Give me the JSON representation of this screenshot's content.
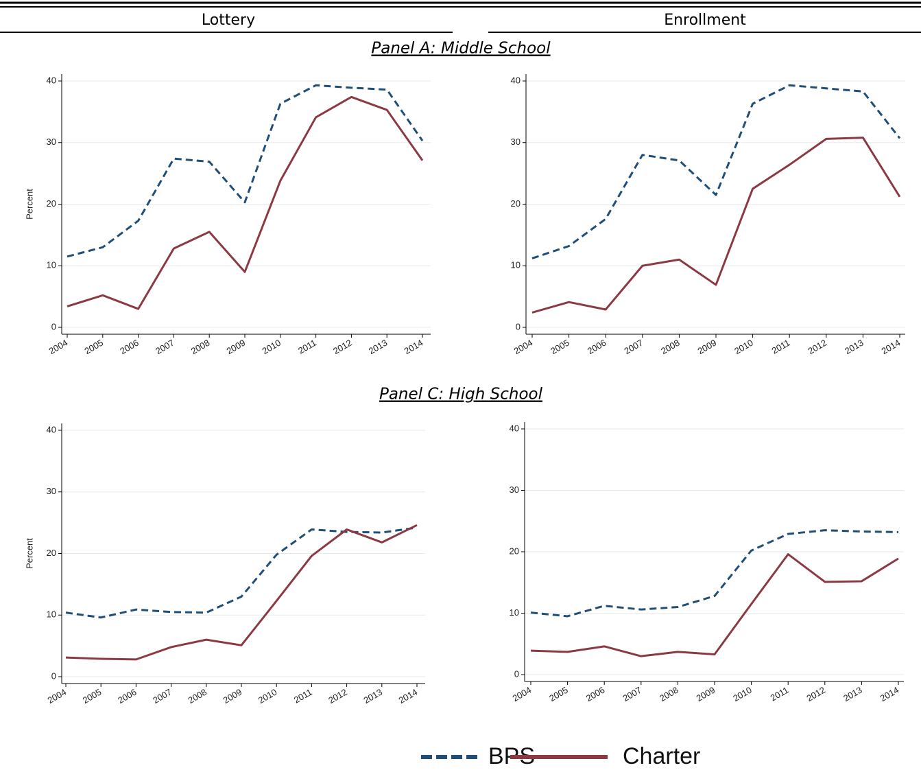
{
  "columns": [
    "Lottery",
    "Enrollment"
  ],
  "panels": [
    "Panel A: Middle School",
    "Panel C: High School"
  ],
  "chart_data": [
    {
      "type": "line",
      "ylabel": "Percent",
      "categories": [
        "2004",
        "2005",
        "2006",
        "2007",
        "2008",
        "2009",
        "2010",
        "2011",
        "2012",
        "2013",
        "2014"
      ],
      "ylim": [
        0,
        40
      ],
      "yticks": [
        0,
        10,
        20,
        30,
        40
      ],
      "grid": true,
      "series": [
        {
          "name": "BPS",
          "color": "#1f4e79",
          "dashed": true,
          "values": [
            11.5,
            13,
            17.3,
            27.4,
            26.9,
            20.3,
            36.3,
            39.3,
            38.9,
            38.6,
            30.3
          ]
        },
        {
          "name": "Charter",
          "color": "#8b3a44",
          "dashed": false,
          "values": [
            3.4,
            5.2,
            3.0,
            12.8,
            15.5,
            9.0,
            23.8,
            34.1,
            37.4,
            35.3,
            27.1
          ]
        }
      ]
    },
    {
      "type": "line",
      "categories": [
        "2004",
        "2005",
        "2006",
        "2007",
        "2008",
        "2009",
        "2010",
        "2011",
        "2012",
        "2013",
        "2014"
      ],
      "ylim": [
        0,
        40
      ],
      "yticks": [
        0,
        10,
        20,
        30,
        40
      ],
      "grid": true,
      "series": [
        {
          "name": "BPS",
          "color": "#1f4e79",
          "dashed": true,
          "values": [
            11.2,
            13.2,
            17.6,
            28.0,
            27.1,
            21.5,
            36.3,
            39.3,
            38.8,
            38.3,
            30.7
          ]
        },
        {
          "name": "Charter",
          "color": "#8b3a44",
          "dashed": false,
          "values": [
            2.4,
            4.1,
            2.9,
            10.0,
            11.0,
            6.9,
            22.5,
            26.4,
            30.6,
            30.8,
            21.2
          ]
        }
      ]
    },
    {
      "type": "line",
      "ylabel": "Percent",
      "categories": [
        "2004",
        "2005",
        "2006",
        "2007",
        "2008",
        "2009",
        "2010",
        "2011",
        "2012",
        "2013",
        "2014"
      ],
      "ylim": [
        0,
        40
      ],
      "yticks": [
        0,
        10,
        20,
        30,
        40
      ],
      "grid": true,
      "series": [
        {
          "name": "BPS",
          "color": "#1f4e79",
          "dashed": true,
          "values": [
            10.4,
            9.6,
            10.9,
            10.5,
            10.4,
            13.0,
            19.8,
            23.9,
            23.5,
            23.4,
            24.2
          ]
        },
        {
          "name": "Charter",
          "color": "#8b3a44",
          "dashed": false,
          "values": [
            3.1,
            2.9,
            2.8,
            4.8,
            6.0,
            5.1,
            12.3,
            19.6,
            23.9,
            21.8,
            24.6
          ]
        }
      ]
    },
    {
      "type": "line",
      "categories": [
        "2004",
        "2005",
        "2006",
        "2007",
        "2008",
        "2009",
        "2010",
        "2011",
        "2012",
        "2013",
        "2014"
      ],
      "ylim": [
        0,
        40
      ],
      "yticks": [
        0,
        10,
        20,
        30,
        40
      ],
      "grid": true,
      "series": [
        {
          "name": "BPS",
          "color": "#1f4e79",
          "dashed": true,
          "values": [
            10.1,
            9.5,
            11.2,
            10.6,
            11.0,
            12.8,
            20.2,
            22.9,
            23.5,
            23.3,
            23.2
          ]
        },
        {
          "name": "Charter",
          "color": "#8b3a44",
          "dashed": false,
          "values": [
            3.9,
            3.7,
            4.6,
            3.0,
            3.7,
            3.3,
            11.5,
            19.6,
            15.1,
            15.2,
            18.9
          ]
        }
      ]
    }
  ]
}
